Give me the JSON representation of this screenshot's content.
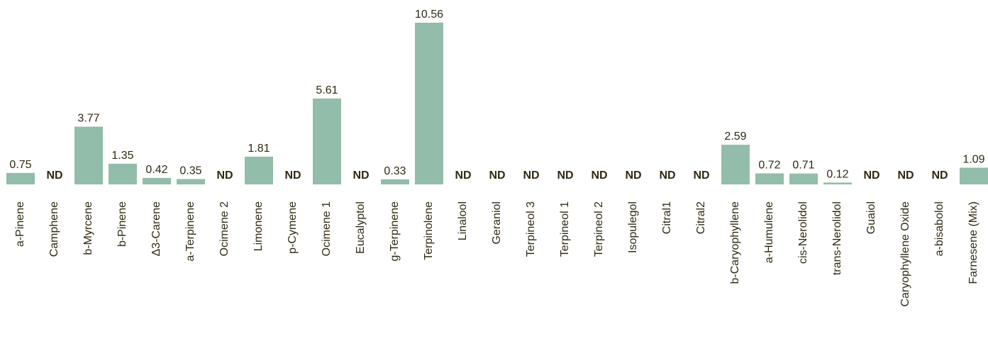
{
  "chart_data": {
    "type": "bar",
    "categories": [
      "a-Pinene",
      "Camphene",
      "b-Myrcene",
      "b-Pinene",
      "Δ3-Carene",
      "a-Terpinene",
      "Ocimene 2",
      "Limonene",
      "p-Cymene",
      "Ocimene 1",
      "Eucalyptol",
      "g-Terpinene",
      "Terpinolene",
      "Linalool",
      "Geraniol",
      "Terpineol 3",
      "Terpineol 1",
      "Terpineol 2",
      "Isopulegol",
      "Citral1",
      "Citral2",
      "b-Caryophyllene",
      "a-Humulene",
      "cis-Nerolidol",
      "trans-Nerolidol",
      "Guaiol",
      "Caryophyllene Oxide",
      "a-bisabolol",
      "Farnesene (Mix)"
    ],
    "values": [
      0.75,
      null,
      3.77,
      1.35,
      0.42,
      0.35,
      null,
      1.81,
      null,
      5.61,
      null,
      0.33,
      10.56,
      null,
      null,
      null,
      null,
      null,
      null,
      null,
      null,
      2.59,
      0.72,
      0.71,
      0.12,
      null,
      null,
      null,
      1.09
    ],
    "value_labels": [
      "0.75",
      "ND",
      "3.77",
      "1.35",
      "0.42",
      "0.35",
      "ND",
      "1.81",
      "ND",
      "5.61",
      "ND",
      "0.33",
      "10.56",
      "ND",
      "ND",
      "ND",
      "ND",
      "ND",
      "ND",
      "ND",
      "ND",
      "2.59",
      "0.72",
      "0.71",
      "0.12",
      "ND",
      "ND",
      "ND",
      "1.09"
    ],
    "ylim": [
      0,
      10.56
    ],
    "grid": false,
    "bar_color": "#92bdaa",
    "text_color": "#2f2a12"
  }
}
